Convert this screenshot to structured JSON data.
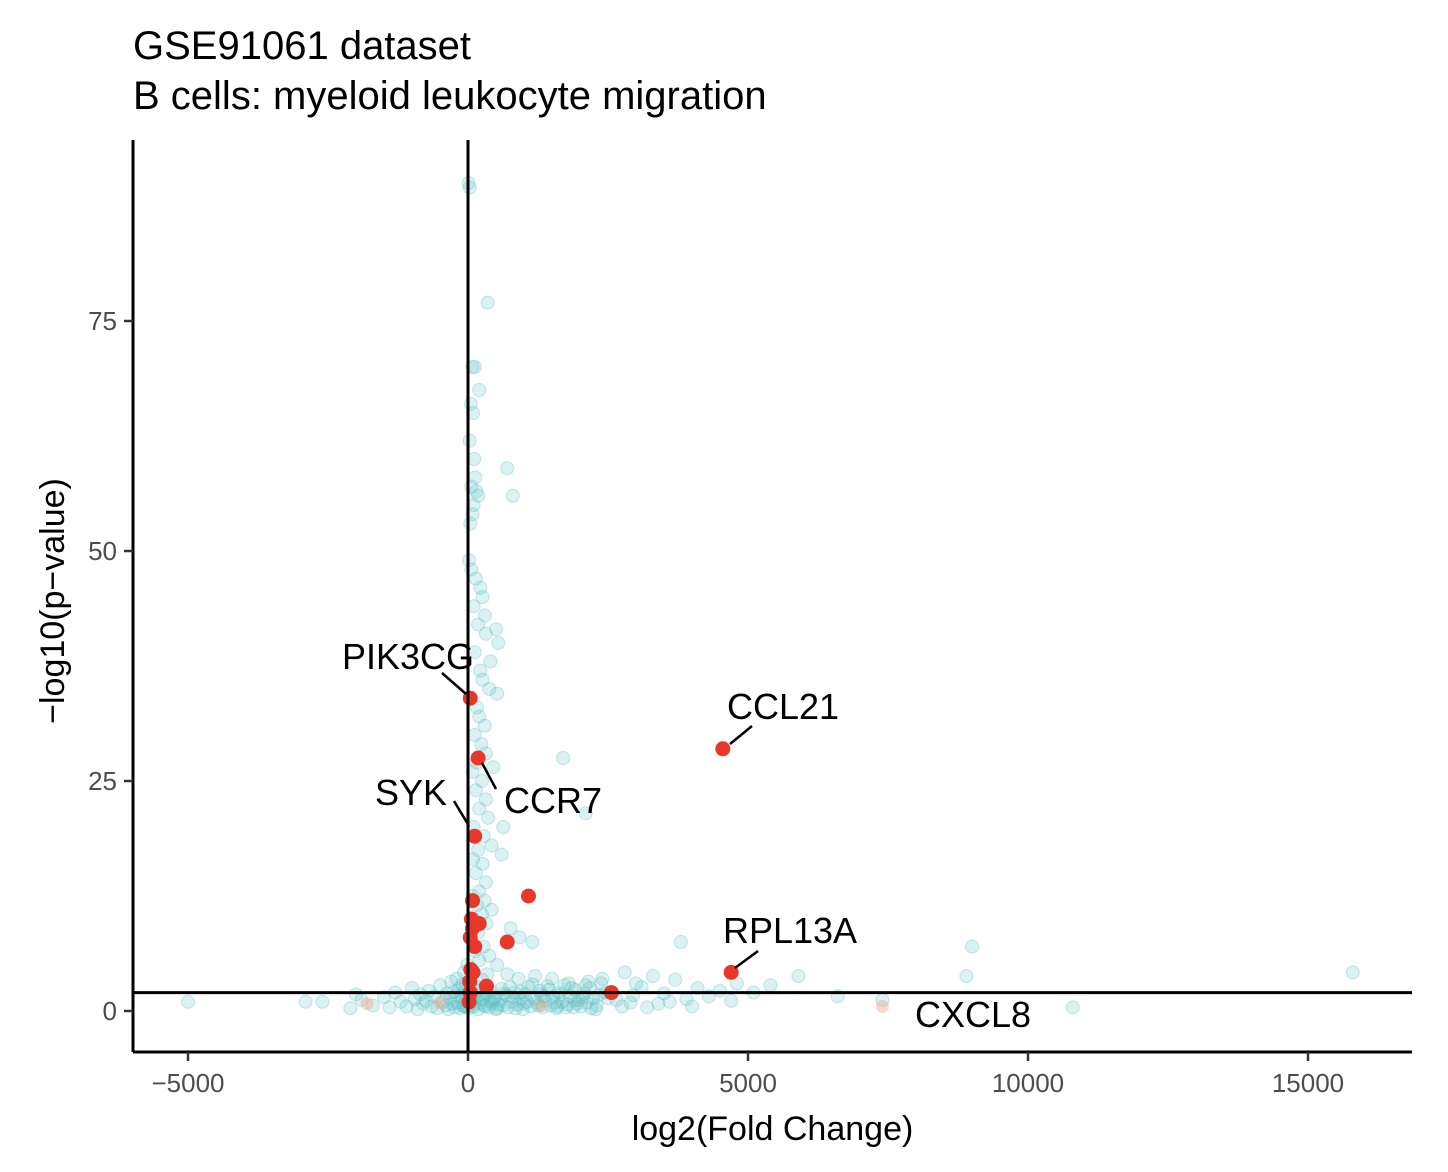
{
  "chart_data": {
    "type": "scatter",
    "title": "GSE91061 dataset",
    "subtitle": "B cells: myeloid leukocyte migration",
    "xlabel": "log2(Fold Change)",
    "ylabel": "−log10(p−value)",
    "xlim": [
      -6000,
      16800
    ],
    "ylim": [
      -4.5,
      94
    ],
    "xticks": [
      -5000,
      0,
      5000,
      10000,
      15000
    ],
    "xtick_labels": [
      "−5000",
      "0",
      "5000",
      "10000",
      "15000"
    ],
    "yticks": [
      0,
      25,
      50,
      75
    ],
    "ytick_labels": [
      "0",
      "25",
      "50",
      "75"
    ],
    "grid": false,
    "legend": "none",
    "reference_lines": {
      "vertical_x": 0,
      "horizontal_y": 2
    },
    "colors": {
      "background_points": "#5bbfc4",
      "highlight_points": "#e8382b",
      "faint_highlight": "#f0a890",
      "axis": "#000000"
    },
    "series": [
      {
        "points": [
          [
            -5000,
            1
          ],
          [
            -2900,
            1
          ],
          [
            -2600,
            1
          ],
          [
            -2100,
            0.3
          ],
          [
            -2000,
            1.8
          ],
          [
            -1900,
            1.2
          ],
          [
            -1700,
            0.6
          ],
          [
            -1500,
            1.5
          ],
          [
            -1400,
            0.4
          ],
          [
            -1300,
            2.0
          ],
          [
            -1200,
            1.0
          ],
          [
            -1100,
            0.5
          ],
          [
            -1000,
            2.5
          ],
          [
            -950,
            1.3
          ],
          [
            -900,
            0.2
          ],
          [
            -850,
            1.8
          ],
          [
            -800,
            0.8
          ],
          [
            -750,
            1.1
          ],
          [
            -700,
            2.2
          ],
          [
            -650,
            0.5
          ],
          [
            -600,
            1.6
          ],
          [
            -550,
            0.3
          ],
          [
            -500,
            2.8
          ],
          [
            -450,
            1.0
          ],
          [
            -400,
            0.6
          ],
          [
            -380,
            1.9
          ],
          [
            -350,
            0.2
          ],
          [
            -320,
            1.4
          ],
          [
            -300,
            3.2
          ],
          [
            -280,
            0.8
          ],
          [
            -260,
            2.1
          ],
          [
            -240,
            0.4
          ],
          [
            -220,
            1.7
          ],
          [
            -200,
            3.5
          ],
          [
            -180,
            0.9
          ],
          [
            -160,
            2.4
          ],
          [
            -140,
            0.3
          ],
          [
            -120,
            1.5
          ],
          [
            -100,
            2.9
          ],
          [
            -90,
            0.6
          ],
          [
            -80,
            1.8
          ],
          [
            -70,
            4.2
          ],
          [
            -60,
            0.5
          ],
          [
            -50,
            2.2
          ],
          [
            -40,
            3.0
          ],
          [
            -30,
            1.1
          ],
          [
            -20,
            0.4
          ],
          [
            -10,
            5.0
          ],
          [
            10,
            90
          ],
          [
            30,
            89.5
          ],
          [
            350,
            77
          ],
          [
            80,
            70
          ],
          [
            120,
            70
          ],
          [
            200,
            67.5
          ],
          [
            50,
            66
          ],
          [
            90,
            65
          ],
          [
            30,
            62
          ],
          [
            110,
            60
          ],
          [
            130,
            58
          ],
          [
            60,
            57
          ],
          [
            150,
            56.5
          ],
          [
            180,
            56
          ],
          [
            100,
            55
          ],
          [
            80,
            54
          ],
          [
            40,
            53
          ],
          [
            700,
            59
          ],
          [
            800,
            56
          ],
          [
            20,
            49
          ],
          [
            60,
            48
          ],
          [
            140,
            47
          ],
          [
            220,
            46
          ],
          [
            100,
            44
          ],
          [
            260,
            45
          ],
          [
            300,
            43
          ],
          [
            180,
            42
          ],
          [
            320,
            41
          ],
          [
            500,
            41.5
          ],
          [
            540,
            40
          ],
          [
            120,
            39
          ],
          [
            400,
            38
          ],
          [
            220,
            37
          ],
          [
            260,
            36
          ],
          [
            380,
            35
          ],
          [
            520,
            34.5
          ],
          [
            160,
            33
          ],
          [
            200,
            32
          ],
          [
            300,
            31
          ],
          [
            120,
            30
          ],
          [
            240,
            29
          ],
          [
            320,
            28
          ],
          [
            160,
            27
          ],
          [
            450,
            26.5
          ],
          [
            1700,
            27.5
          ],
          [
            80,
            26
          ],
          [
            250,
            25
          ],
          [
            140,
            24
          ],
          [
            320,
            23
          ],
          [
            200,
            22
          ],
          [
            360,
            21
          ],
          [
            630,
            20
          ],
          [
            2100,
            21.5
          ],
          [
            100,
            20
          ],
          [
            280,
            19
          ],
          [
            420,
            18
          ],
          [
            180,
            17.5
          ],
          [
            600,
            17
          ],
          [
            90,
            16.5
          ],
          [
            260,
            16
          ],
          [
            140,
            15
          ],
          [
            320,
            14
          ],
          [
            200,
            13
          ],
          [
            80,
            12.5
          ],
          [
            300,
            12
          ],
          [
            160,
            11.5
          ],
          [
            420,
            11
          ],
          [
            250,
            10.5
          ],
          [
            100,
            10
          ],
          [
            330,
            9.5
          ],
          [
            760,
            9
          ],
          [
            180,
            8.5
          ],
          [
            920,
            8
          ],
          [
            1150,
            7.5
          ],
          [
            280,
            7
          ],
          [
            3800,
            7.5
          ],
          [
            9000,
            7
          ],
          [
            120,
            6.5
          ],
          [
            380,
            6
          ],
          [
            200,
            5.5
          ],
          [
            520,
            5
          ],
          [
            60,
            4.5
          ],
          [
            340,
            4
          ],
          [
            700,
            4
          ],
          [
            900,
            3.5
          ],
          [
            1200,
            3.8
          ],
          [
            1500,
            3.5
          ],
          [
            1800,
            3
          ],
          [
            2100,
            2.8
          ],
          [
            2400,
            3.5
          ],
          [
            2800,
            4.2
          ],
          [
            3000,
            3.0
          ],
          [
            3300,
            3.8
          ],
          [
            3700,
            3.4
          ],
          [
            4100,
            2.5
          ],
          [
            4500,
            2.2
          ],
          [
            4800,
            3.0
          ],
          [
            5100,
            2.0
          ],
          [
            5400,
            2.8
          ],
          [
            5900,
            3.8
          ],
          [
            6600,
            1.6
          ],
          [
            7400,
            1.2
          ],
          [
            8900,
            3.8
          ],
          [
            10800,
            0.4
          ],
          [
            15800,
            4.2
          ],
          [
            800,
            1.5
          ],
          [
            1000,
            0.8
          ],
          [
            1300,
            1.8
          ],
          [
            1600,
            0.5
          ],
          [
            1900,
            1.2
          ],
          [
            2200,
            0.3
          ],
          [
            2500,
            1.4
          ],
          [
            2900,
            0.9
          ],
          [
            3200,
            0.4
          ],
          [
            3600,
            1.0
          ],
          [
            4000,
            0.5
          ],
          [
            4300,
            1.6
          ],
          [
            4700,
            1.1
          ],
          [
            500,
            0.2
          ],
          [
            600,
            2.4
          ],
          [
            400,
            1.0
          ],
          [
            300,
            0.5
          ],
          [
            200,
            1.7
          ],
          [
            150,
            2.6
          ],
          [
            250,
            3.4
          ],
          [
            350,
            2.0
          ],
          [
            450,
            1.2
          ],
          [
            550,
            0.7
          ],
          [
            650,
            1.9
          ],
          [
            750,
            2.6
          ],
          [
            850,
            0.3
          ],
          [
            950,
            2.1
          ],
          [
            1050,
            1.0
          ],
          [
            1150,
            2.9
          ],
          [
            1250,
            0.6
          ],
          [
            1350,
            1.6
          ],
          [
            1450,
            2.3
          ],
          [
            1550,
            0.9
          ],
          [
            1650,
            1.8
          ],
          [
            1750,
            0.4
          ],
          [
            1850,
            2.5
          ],
          [
            1950,
            0.8
          ],
          [
            2050,
            1.5
          ],
          [
            2150,
            3.2
          ],
          [
            2300,
            0.6
          ],
          [
            2450,
            2.0
          ],
          [
            2650,
            1.2
          ],
          [
            2750,
            0.5
          ],
          [
            2950,
            1.7
          ],
          [
            3100,
            2.6
          ],
          [
            3400,
            0.8
          ],
          [
            3500,
            1.9
          ],
          [
            3900,
            1.3
          ],
          [
            40,
            3.2
          ],
          [
            80,
            1.6
          ],
          [
            120,
            0.8
          ],
          [
            160,
            2.2
          ],
          [
            20,
            0.3
          ],
          [
            60,
            1.1
          ],
          [
            100,
            0.5
          ],
          [
            140,
            1.4
          ],
          [
            180,
            0.2
          ],
          [
            220,
            0.9
          ],
          [
            260,
            1.3
          ],
          [
            290,
            0.6
          ],
          [
            330,
            1.8
          ],
          [
            370,
            0.4
          ],
          [
            410,
            2.2
          ],
          [
            440,
            0.9
          ],
          [
            480,
            1.5
          ],
          [
            520,
            0.3
          ],
          [
            570,
            1.2
          ],
          [
            620,
            0.6
          ],
          [
            680,
            1.7
          ],
          [
            720,
            0.4
          ],
          [
            780,
            1.0
          ],
          [
            830,
            2.0
          ],
          [
            880,
            0.7
          ],
          [
            930,
            1.3
          ],
          [
            980,
            0.2
          ],
          [
            1020,
            1.8
          ],
          [
            1080,
            2.6
          ],
          [
            1120,
            0.5
          ],
          [
            1180,
            1.4
          ],
          [
            1230,
            0.9
          ],
          [
            1280,
            2.2
          ],
          [
            1330,
            0.4
          ],
          [
            1380,
            1.1
          ],
          [
            1420,
            2.7
          ],
          [
            1480,
            0.6
          ],
          [
            1520,
            1.5
          ],
          [
            1580,
            0.3
          ],
          [
            1620,
            2.0
          ],
          [
            1680,
            1.0
          ],
          [
            1720,
            2.8
          ],
          [
            1780,
            0.7
          ],
          [
            1820,
            1.6
          ],
          [
            1880,
            0.4
          ],
          [
            1920,
            2.3
          ],
          [
            1980,
            1.2
          ],
          [
            2020,
            0.5
          ],
          [
            2080,
            1.9
          ],
          [
            2120,
            0.9
          ],
          [
            2180,
            2.5
          ],
          [
            2230,
            1.4
          ],
          [
            2280,
            0.2
          ],
          [
            2330,
            1.7
          ],
          [
            2380,
            3.0
          ]
        ]
      },
      {
        "points": [
          [
            40,
            34
          ],
          [
            4550,
            28.5
          ],
          [
            180,
            27.5
          ],
          [
            120,
            19
          ],
          [
            1080,
            12.5
          ],
          [
            80,
            12
          ],
          [
            60,
            10
          ],
          [
            200,
            9.5
          ],
          [
            80,
            9
          ],
          [
            700,
            7.5
          ],
          [
            40,
            8
          ],
          [
            120,
            7
          ],
          [
            50,
            4.5
          ],
          [
            90,
            4.2
          ],
          [
            30,
            3.2
          ],
          [
            4700,
            4.2
          ],
          [
            330,
            2.7
          ],
          [
            2560,
            2
          ],
          [
            40,
            2
          ],
          [
            20,
            1
          ]
        ]
      }
    ],
    "annotations": [
      {
        "label": "PIK3CG",
        "x": 40,
        "y": 34
      },
      {
        "label": "CCL21",
        "x": 4550,
        "y": 28.5
      },
      {
        "label": "CCR7",
        "x": 180,
        "y": 27.5
      },
      {
        "label": "SYK",
        "x": 120,
        "y": 19
      },
      {
        "label": "RPL13A",
        "x": 4700,
        "y": 4.2
      },
      {
        "label": "CXCL8",
        "x": 8000,
        "y": 0
      }
    ],
    "faint_highlight_points": [
      [
        7400,
        0.5
      ],
      [
        -1800,
        0.8
      ],
      [
        1300,
        0.6
      ],
      [
        -500,
        0.9
      ]
    ]
  }
}
